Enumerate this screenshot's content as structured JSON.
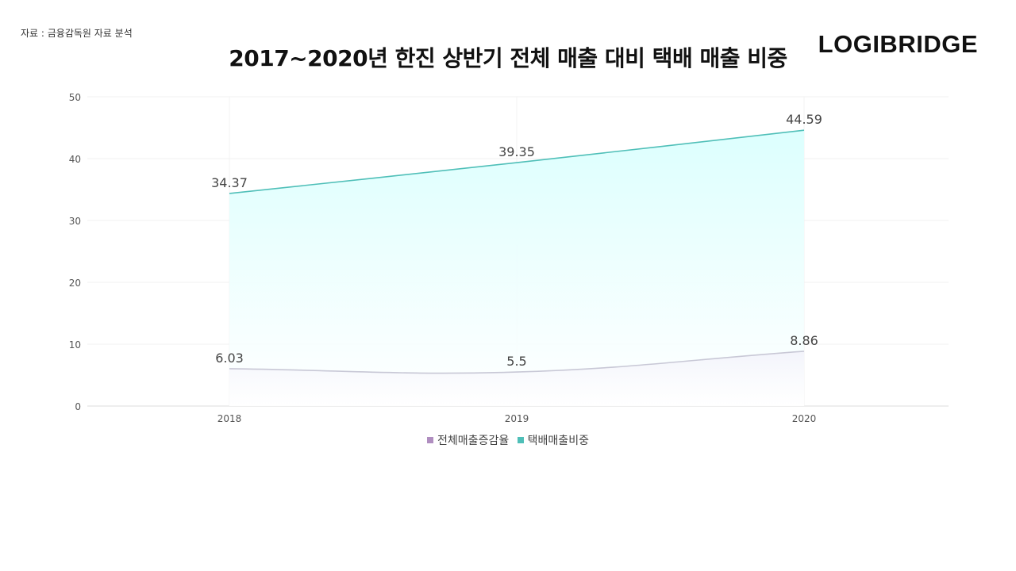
{
  "source": "자료 : 금융감독원 자료 분석",
  "logo": "LOGIBRIDGE",
  "chart_data": {
    "type": "area",
    "title": "2017~2020년 한진 상반기 전체 매출 대비 택배 매출 비중",
    "categories": [
      "2018",
      "2019",
      "2020"
    ],
    "series": [
      {
        "name": "전체매출증감율",
        "values": [
          6.03,
          5.5,
          8.86
        ],
        "color": "#c8c8d6",
        "fill": "#f3f4fb",
        "swatch": "#b08ec0",
        "labels": [
          "6.03",
          "5.5",
          "8.86"
        ]
      },
      {
        "name": "택배매출비중",
        "values": [
          34.37,
          39.35,
          44.59
        ],
        "color": "#4fbfb8",
        "fill": "#dcfffe",
        "swatch": "#4fbfb8",
        "labels": [
          "34.37",
          "39.35",
          "44.59"
        ]
      }
    ],
    "y_ticks": [
      "0",
      "10",
      "20",
      "30",
      "40",
      "50"
    ],
    "ylim": [
      0,
      50
    ],
    "grid": true,
    "legend": "bottom-center"
  }
}
